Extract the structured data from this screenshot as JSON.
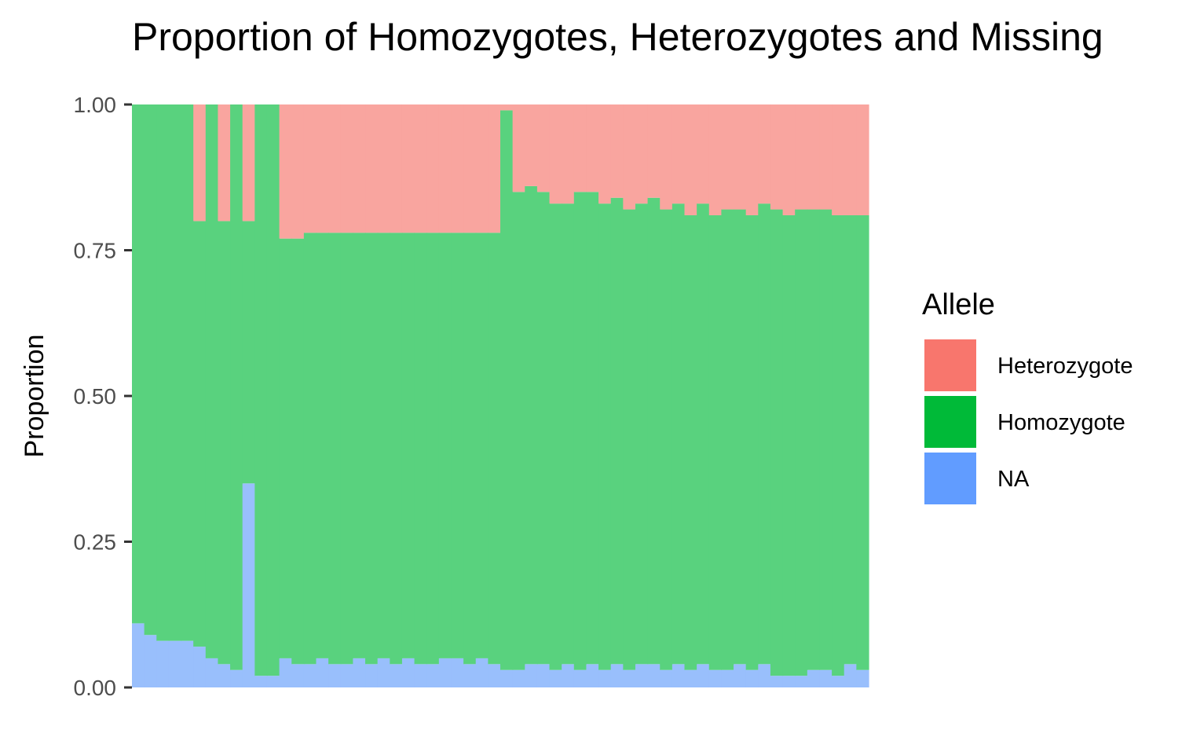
{
  "chart_data": {
    "type": "bar",
    "stacked": true,
    "stack_order": [
      "NA",
      "Homozygote",
      "Heterozygote"
    ],
    "title": "Proportion of Homozygotes, Heterozygotes and Missing",
    "xlabel": "",
    "ylabel": "Proportion",
    "ylim": [
      0,
      1
    ],
    "yticks": [
      "0.00",
      "0.25",
      "0.50",
      "0.75",
      "1.00"
    ],
    "ytick_values": [
      0,
      0.25,
      0.5,
      0.75,
      1.0
    ],
    "grid": false,
    "legend": {
      "title": "Allele",
      "placement": "right",
      "entries": [
        {
          "name": "Heterozygote",
          "color": "#F8766D"
        },
        {
          "name": "Homozygote",
          "color": "#00BA38"
        },
        {
          "name": "NA",
          "color": "#619CFF"
        }
      ]
    },
    "bar_colors": {
      "Heterozygote": "#F9A59F",
      "Homozygote": "#59D27E",
      "NA": "#99BFFC"
    },
    "n_samples": 60,
    "profile_note": "Per-sample stacked proportions (approximate, read at sample positions left to right)",
    "series": [
      {
        "name": "NA",
        "values": [
          0.11,
          0.09,
          0.08,
          0.08,
          0.08,
          0.07,
          0.05,
          0.04,
          0.03,
          0.35,
          0.02,
          0.02,
          0.05,
          0.04,
          0.04,
          0.05,
          0.04,
          0.04,
          0.05,
          0.04,
          0.05,
          0.04,
          0.05,
          0.04,
          0.04,
          0.05,
          0.05,
          0.04,
          0.05,
          0.04,
          0.03,
          0.03,
          0.04,
          0.04,
          0.03,
          0.04,
          0.03,
          0.04,
          0.03,
          0.04,
          0.03,
          0.04,
          0.04,
          0.03,
          0.04,
          0.03,
          0.04,
          0.03,
          0.03,
          0.04,
          0.03,
          0.04,
          0.02,
          0.02,
          0.02,
          0.03,
          0.03,
          0.02,
          0.04,
          0.03
        ]
      },
      {
        "name": "Homozygote",
        "values": [
          0.89,
          0.91,
          0.92,
          0.92,
          0.92,
          0.73,
          0.95,
          0.76,
          0.97,
          0.45,
          0.98,
          0.98,
          0.72,
          0.73,
          0.74,
          0.73,
          0.74,
          0.74,
          0.73,
          0.74,
          0.73,
          0.74,
          0.73,
          0.74,
          0.74,
          0.73,
          0.73,
          0.74,
          0.73,
          0.74,
          0.96,
          0.82,
          0.82,
          0.81,
          0.8,
          0.79,
          0.82,
          0.81,
          0.8,
          0.8,
          0.79,
          0.79,
          0.8,
          0.79,
          0.79,
          0.78,
          0.79,
          0.78,
          0.79,
          0.78,
          0.78,
          0.79,
          0.8,
          0.79,
          0.8,
          0.79,
          0.79,
          0.79,
          0.77,
          0.78
        ]
      },
      {
        "name": "Heterozygote",
        "values": [
          0.0,
          0.0,
          0.0,
          0.0,
          0.0,
          0.2,
          0.0,
          0.2,
          0.0,
          0.2,
          0.0,
          0.0,
          0.23,
          0.23,
          0.22,
          0.22,
          0.22,
          0.22,
          0.22,
          0.22,
          0.22,
          0.22,
          0.22,
          0.22,
          0.22,
          0.22,
          0.22,
          0.22,
          0.22,
          0.22,
          0.01,
          0.15,
          0.14,
          0.15,
          0.17,
          0.17,
          0.15,
          0.15,
          0.17,
          0.16,
          0.18,
          0.17,
          0.16,
          0.18,
          0.17,
          0.19,
          0.17,
          0.19,
          0.18,
          0.18,
          0.19,
          0.17,
          0.18,
          0.19,
          0.18,
          0.18,
          0.18,
          0.19,
          0.19,
          0.19
        ]
      }
    ]
  }
}
